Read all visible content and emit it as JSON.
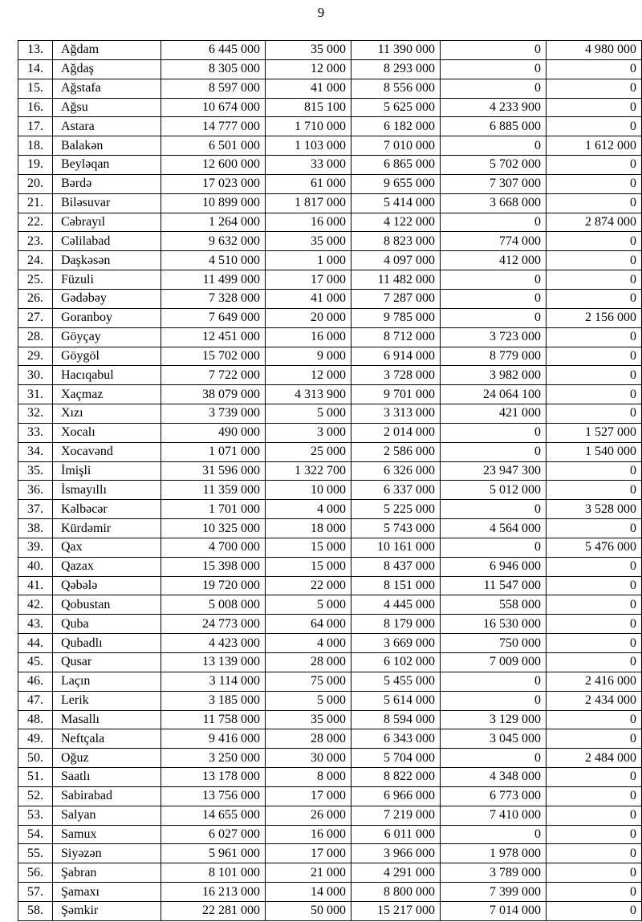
{
  "page_number": "9",
  "rows": [
    [
      "13.",
      "Ağdam",
      "6 445 000",
      "35 000",
      "11 390 000",
      "0",
      "4 980 000"
    ],
    [
      "14.",
      "Ağdaş",
      "8 305 000",
      "12 000",
      "8 293 000",
      "0",
      "0"
    ],
    [
      "15.",
      "Ağstafa",
      "8 597 000",
      "41 000",
      "8 556 000",
      "0",
      "0"
    ],
    [
      "16.",
      "Ağsu",
      "10 674 000",
      "815 100",
      "5 625 000",
      "4 233 900",
      "0"
    ],
    [
      "17.",
      "Astara",
      "14 777 000",
      "1 710 000",
      "6 182 000",
      "6 885 000",
      "0"
    ],
    [
      "18.",
      "Balakən",
      "6 501 000",
      "1 103 000",
      "7 010 000",
      "0",
      "1 612 000"
    ],
    [
      "19.",
      "Beyləqan",
      "12 600 000",
      "33 000",
      "6 865 000",
      "5 702 000",
      "0"
    ],
    [
      "20.",
      "Bərdə",
      "17 023 000",
      "61 000",
      "9 655 000",
      "7 307 000",
      "0"
    ],
    [
      "21.",
      "Biləsuvar",
      "10 899 000",
      "1 817 000",
      "5 414 000",
      "3 668 000",
      "0"
    ],
    [
      "22.",
      "Cəbrayıl",
      "1 264 000",
      "16 000",
      "4 122 000",
      "0",
      "2 874 000"
    ],
    [
      "23.",
      "Cəlilabad",
      "9 632 000",
      "35 000",
      "8 823 000",
      "774 000",
      "0"
    ],
    [
      "24.",
      "Daşkəsən",
      "4 510 000",
      "1 000",
      "4 097 000",
      "412 000",
      "0"
    ],
    [
      "25.",
      "Füzuli",
      "11 499 000",
      "17 000",
      "11 482 000",
      "0",
      "0"
    ],
    [
      "26.",
      "Gədəbəy",
      "7 328 000",
      "41 000",
      "7 287 000",
      "0",
      "0"
    ],
    [
      "27.",
      "Goranboy",
      "7 649 000",
      "20 000",
      "9 785 000",
      "0",
      "2 156 000"
    ],
    [
      "28.",
      "Göyçay",
      "12 451 000",
      "16 000",
      "8 712 000",
      "3 723 000",
      "0"
    ],
    [
      "29.",
      "Göygöl",
      "15 702 000",
      "9 000",
      "6 914 000",
      "8 779 000",
      "0"
    ],
    [
      "30.",
      "Hacıqabul",
      "7 722 000",
      "12 000",
      "3 728 000",
      "3 982 000",
      "0"
    ],
    [
      "31.",
      "Xaçmaz",
      "38 079 000",
      "4 313 900",
      "9 701 000",
      "24 064 100",
      "0"
    ],
    [
      "32.",
      "Xızı",
      "3 739 000",
      "5 000",
      "3 313 000",
      "421 000",
      "0"
    ],
    [
      "33.",
      "Xocalı",
      "490 000",
      "3 000",
      "2 014 000",
      "0",
      "1 527 000"
    ],
    [
      "34.",
      "Xocavənd",
      "1 071 000",
      "25 000",
      "2 586 000",
      "0",
      "1 540 000"
    ],
    [
      "35.",
      "İmişli",
      "31 596 000",
      "1 322 700",
      "6 326 000",
      "23 947 300",
      "0"
    ],
    [
      "36.",
      "İsmayıllı",
      "11 359 000",
      "10 000",
      "6 337 000",
      "5 012 000",
      "0"
    ],
    [
      "37.",
      "Kəlbəcər",
      "1 701 000",
      "4 000",
      "5 225 000",
      "0",
      "3 528 000"
    ],
    [
      "38.",
      "Kürdəmir",
      "10 325 000",
      "18 000",
      "5 743 000",
      "4 564 000",
      "0"
    ],
    [
      "39.",
      "Qax",
      "4 700 000",
      "15 000",
      "10 161 000",
      "0",
      "5 476 000"
    ],
    [
      "40.",
      "Qazax",
      "15 398 000",
      "15 000",
      "8 437 000",
      "6 946 000",
      "0"
    ],
    [
      "41.",
      "Qəbələ",
      "19 720 000",
      "22 000",
      "8 151 000",
      "11 547 000",
      "0"
    ],
    [
      "42.",
      "Qobustan",
      "5 008 000",
      "5 000",
      "4 445 000",
      "558 000",
      "0"
    ],
    [
      "43.",
      "Quba",
      "24 773 000",
      "64 000",
      "8 179 000",
      "16 530 000",
      "0"
    ],
    [
      "44.",
      "Qubadlı",
      "4 423 000",
      "4 000",
      "3 669 000",
      "750 000",
      "0"
    ],
    [
      "45.",
      "Qusar",
      "13 139 000",
      "28 000",
      "6 102 000",
      "7 009 000",
      "0"
    ],
    [
      "46.",
      "Laçın",
      "3 114 000",
      "75 000",
      "5 455 000",
      "0",
      "2 416 000"
    ],
    [
      "47.",
      "Lerik",
      "3 185 000",
      "5 000",
      "5 614 000",
      "0",
      "2 434 000"
    ],
    [
      "48.",
      "Masallı",
      "11 758 000",
      "35 000",
      "8 594 000",
      "3 129 000",
      "0"
    ],
    [
      "49.",
      "Neftçala",
      "9 416 000",
      "28 000",
      "6 343 000",
      "3 045 000",
      "0"
    ],
    [
      "50.",
      "Oğuz",
      "3 250 000",
      "30 000",
      "5 704 000",
      "0",
      "2 484 000"
    ],
    [
      "51.",
      "Saatlı",
      "13 178 000",
      "8 000",
      "8 822 000",
      "4 348 000",
      "0"
    ],
    [
      "52.",
      "Sabirabad",
      "13 756 000",
      "17 000",
      "6 966 000",
      "6 773 000",
      "0"
    ],
    [
      "53.",
      "Salyan",
      "14 655 000",
      "26 000",
      "7 219 000",
      "7 410 000",
      "0"
    ],
    [
      "54.",
      "Samux",
      "6 027 000",
      "16 000",
      "6 011 000",
      "0",
      "0"
    ],
    [
      "55.",
      "Siyəzən",
      "5 961 000",
      "17 000",
      "3 966 000",
      "1 978 000",
      "0"
    ],
    [
      "56.",
      "Şabran",
      "8 101 000",
      "21 000",
      "4 291 000",
      "3 789 000",
      "0"
    ],
    [
      "57.",
      "Şamaxı",
      "16 213 000",
      "14 000",
      "8 800 000",
      "7 399 000",
      "0"
    ],
    [
      "58.",
      "Şəmkir",
      "22 281 000",
      "50 000",
      "15 217 000",
      "7 014 000",
      "0"
    ]
  ]
}
